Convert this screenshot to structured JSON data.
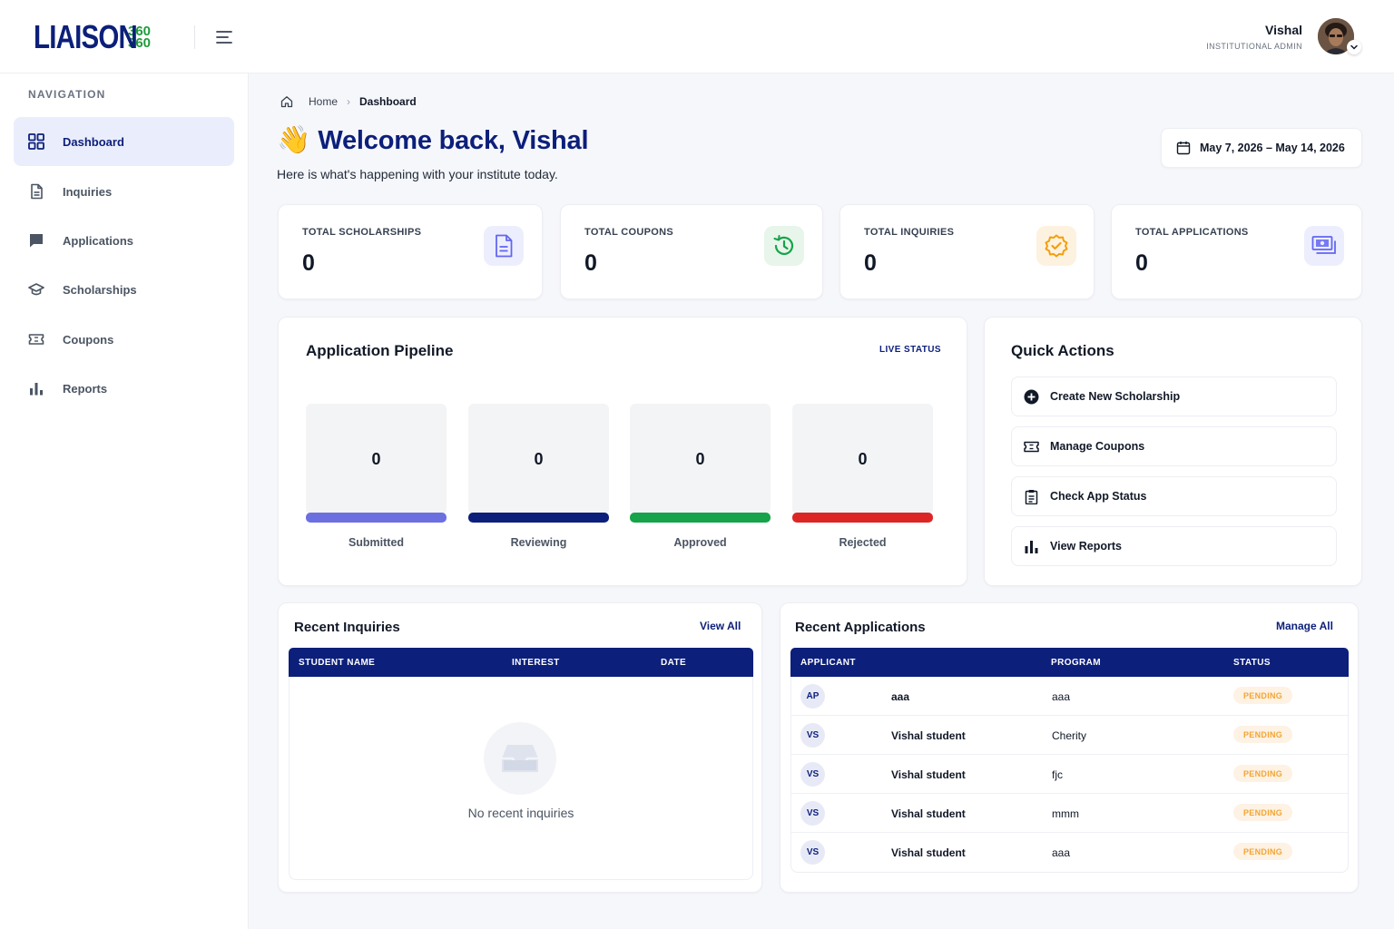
{
  "brand": {
    "name_main": "LIAISON",
    "name_side_top": "360",
    "name_side_bottom": "360",
    "primary_color": "#0c1f7a",
    "accent_color": "#1f9b3a"
  },
  "header": {
    "user_name": "Vishal",
    "user_role": "INSTITUTIONAL ADMIN",
    "menu_icon": "hamburger-icon",
    "avatar_chevron_icon": "chevron-down-icon"
  },
  "sidebar": {
    "heading": "NAVIGATION",
    "items": [
      {
        "label": "Dashboard",
        "icon": "grid-icon",
        "active": true
      },
      {
        "label": "Inquiries",
        "icon": "document-icon"
      },
      {
        "label": "Applications",
        "icon": "chat-icon"
      },
      {
        "label": "Scholarships",
        "icon": "graduation-cap-icon"
      },
      {
        "label": "Coupons",
        "icon": "ticket-icon"
      },
      {
        "label": "Reports",
        "icon": "bar-chart-icon"
      }
    ]
  },
  "breadcrumb": {
    "home": "Home",
    "separator": "›",
    "current": "Dashboard"
  },
  "welcome": {
    "emoji": "👋",
    "title": "Welcome back, Vishal",
    "subtitle": "Here is what's happening with your institute today."
  },
  "date_range": "May 7, 2026 – May 14, 2026",
  "stats": [
    {
      "label": "TOTAL SCHOLARSHIPS",
      "value": "0",
      "icon": "document-icon",
      "color": "#6366f1"
    },
    {
      "label": "TOTAL COUPONS",
      "value": "0",
      "icon": "history-icon",
      "color": "#16a34a"
    },
    {
      "label": "TOTAL INQUIRIES",
      "value": "0",
      "icon": "verified-badge-icon",
      "color": "#f59e0b"
    },
    {
      "label": "TOTAL APPLICATIONS",
      "value": "0",
      "icon": "payments-icon",
      "color": "#6366f1"
    }
  ],
  "pipeline": {
    "title": "Application Pipeline",
    "status_label": "LIVE STATUS",
    "stages": [
      {
        "label": "Submitted",
        "value": "0",
        "color": "#6c6fe0"
      },
      {
        "label": "Reviewing",
        "value": "0",
        "color": "#0c1f7a"
      },
      {
        "label": "Approved",
        "value": "0",
        "color": "#16a34a"
      },
      {
        "label": "Rejected",
        "value": "0",
        "color": "#dc2626"
      }
    ]
  },
  "quick_actions": {
    "title": "Quick Actions",
    "items": [
      {
        "label": "Create New Scholarship",
        "icon": "plus-circle-icon"
      },
      {
        "label": "Manage Coupons",
        "icon": "ticket-icon"
      },
      {
        "label": "Check App Status",
        "icon": "clipboard-icon"
      },
      {
        "label": "View Reports",
        "icon": "bar-chart-icon"
      }
    ]
  },
  "recent_inquiries": {
    "title": "Recent Inquiries",
    "link": "View All",
    "columns": [
      "STUDENT NAME",
      "INTEREST",
      "DATE"
    ],
    "empty_text": "No recent inquiries",
    "empty_icon": "inbox-icon"
  },
  "recent_applications": {
    "title": "Recent Applications",
    "link": "Manage All",
    "columns": [
      "APPLICANT",
      "PROGRAM",
      "STATUS"
    ],
    "rows": [
      {
        "initials": "AP",
        "name": "aaa",
        "program": "aaa",
        "status": "PENDING"
      },
      {
        "initials": "VS",
        "name": "Vishal student",
        "program": "Cherity",
        "status": "PENDING"
      },
      {
        "initials": "VS",
        "name": "Vishal student",
        "program": "fjc",
        "status": "PENDING"
      },
      {
        "initials": "VS",
        "name": "Vishal student",
        "program": "mmm",
        "status": "PENDING"
      },
      {
        "initials": "VS",
        "name": "Vishal student",
        "program": "aaa",
        "status": "PENDING"
      }
    ]
  }
}
